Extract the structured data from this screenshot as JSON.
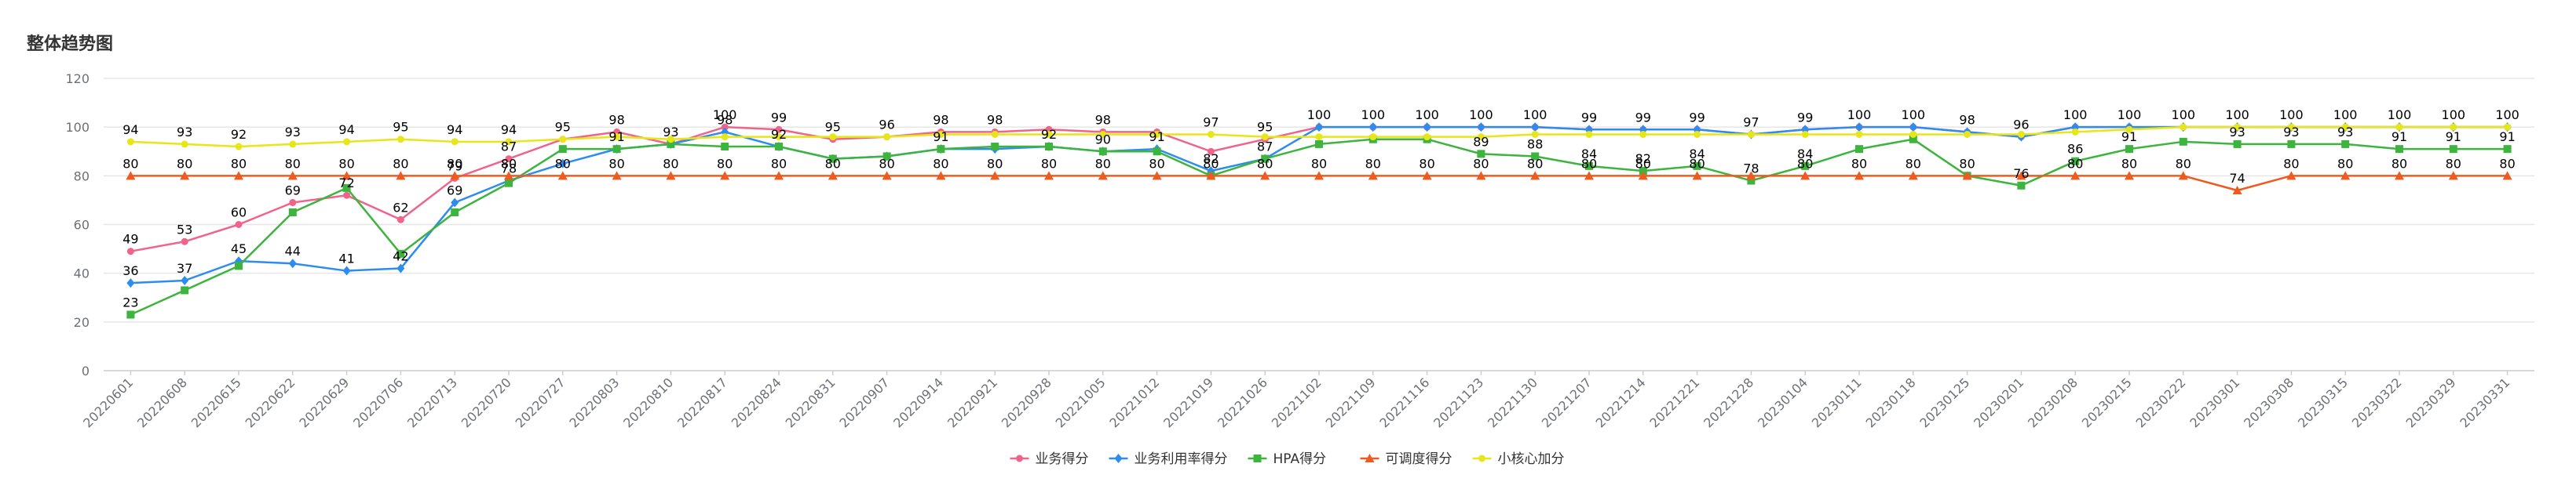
{
  "chart_data": {
    "type": "line",
    "title": "整体趋势图",
    "xlabel": "",
    "ylabel": "",
    "ylim": [
      0,
      120
    ],
    "yticks": [
      0,
      20,
      40,
      60,
      80,
      100,
      120
    ],
    "grid": true,
    "legend_position": "bottom",
    "categories": [
      "20220601",
      "20220608",
      "20220615",
      "20220622",
      "20220629",
      "20220706",
      "20220713",
      "20220720",
      "20220727",
      "20220803",
      "20220810",
      "20220817",
      "20220824",
      "20220831",
      "20220907",
      "20220914",
      "20220921",
      "20220928",
      "20221005",
      "20221012",
      "20221019",
      "20221026",
      "20221102",
      "20221109",
      "20221116",
      "20221123",
      "20221130",
      "20221207",
      "20221214",
      "20221221",
      "20221228",
      "20230104",
      "20230111",
      "20230118",
      "20230125",
      "20230201",
      "20230208",
      "20230215",
      "20230222",
      "20230301",
      "20230308",
      "20230315",
      "20230322",
      "20230329",
      "20230331"
    ],
    "series": [
      {
        "name": "业务得分",
        "color": "#f0648c",
        "marker": "circle",
        "values": [
          49,
          53,
          60,
          69,
          72,
          62,
          79,
          87,
          95,
          98,
          93,
          100,
          99,
          95,
          96,
          98,
          98,
          99,
          98,
          98,
          90,
          95,
          100,
          100,
          100,
          100,
          100,
          99,
          99,
          99,
          97,
          99,
          100,
          100,
          98,
          96,
          100,
          100,
          100,
          100,
          100,
          100,
          100,
          100,
          100
        ],
        "labels": [
          true,
          true,
          true,
          true,
          true,
          true,
          true,
          true,
          false,
          true,
          false,
          true,
          true,
          true,
          true,
          true,
          true,
          false,
          true,
          false,
          false,
          true,
          false,
          false,
          false,
          false,
          false,
          false,
          false,
          false,
          true,
          false,
          false,
          false,
          true,
          true,
          false,
          false,
          false,
          false,
          false,
          false,
          false,
          false,
          false
        ]
      },
      {
        "name": "业务利用率得分",
        "color": "#2d8cf0",
        "marker": "diamond",
        "values": [
          36,
          37,
          45,
          44,
          41,
          42,
          69,
          78,
          85,
          91,
          93,
          98,
          92,
          87,
          88,
          91,
          91,
          92,
          90,
          91,
          82,
          87,
          100,
          100,
          100,
          100,
          100,
          99,
          99,
          99,
          97,
          99,
          100,
          100,
          98,
          96,
          100,
          100,
          100,
          100,
          100,
          100,
          100,
          100,
          100
        ],
        "labels": [
          true,
          true,
          true,
          true,
          true,
          true,
          true,
          true,
          false,
          true,
          true,
          true,
          true,
          false,
          false,
          true,
          false,
          true,
          true,
          true,
          true,
          true,
          true,
          true,
          true,
          true,
          true,
          true,
          true,
          true,
          false,
          true,
          true,
          true,
          false,
          false,
          true,
          true,
          true,
          true,
          true,
          true,
          true,
          true,
          true
        ]
      },
      {
        "name": "HPA得分",
        "color": "#3db43d",
        "marker": "square",
        "values": [
          23,
          33,
          43,
          65,
          75,
          48,
          65,
          77,
          91,
          91,
          93,
          92,
          92,
          87,
          88,
          91,
          92,
          92,
          90,
          90,
          80,
          87,
          93,
          95,
          95,
          89,
          88,
          84,
          82,
          84,
          78,
          84,
          91,
          95,
          80,
          76,
          86,
          91,
          94,
          93,
          93,
          93,
          91,
          91,
          91
        ],
        "labels": [
          true,
          false,
          false,
          false,
          false,
          false,
          false,
          false,
          false,
          false,
          false,
          false,
          false,
          false,
          false,
          false,
          false,
          false,
          false,
          false,
          false,
          false,
          false,
          false,
          false,
          true,
          true,
          true,
          true,
          true,
          true,
          true,
          false,
          false,
          false,
          true,
          true,
          true,
          false,
          true,
          true,
          true,
          true,
          true,
          true
        ]
      },
      {
        "name": "可调度得分",
        "color": "#f05a1e",
        "marker": "triangle",
        "values": [
          80,
          80,
          80,
          80,
          80,
          80,
          80,
          80,
          80,
          80,
          80,
          80,
          80,
          80,
          80,
          80,
          80,
          80,
          80,
          80,
          80,
          80,
          80,
          80,
          80,
          80,
          80,
          80,
          80,
          80,
          80,
          80,
          80,
          80,
          80,
          80,
          80,
          80,
          80,
          74,
          80,
          80,
          80,
          80,
          80
        ],
        "labels": [
          true,
          true,
          true,
          true,
          true,
          true,
          true,
          true,
          true,
          true,
          true,
          true,
          true,
          true,
          true,
          true,
          true,
          true,
          true,
          true,
          true,
          true,
          true,
          true,
          true,
          true,
          true,
          true,
          true,
          true,
          false,
          true,
          true,
          true,
          true,
          false,
          true,
          true,
          true,
          true,
          true,
          true,
          true,
          true,
          true
        ]
      },
      {
        "name": "小核心加分",
        "color": "#e6e619",
        "marker": "circle",
        "values": [
          94,
          93,
          92,
          93,
          94,
          95,
          94,
          94,
          95,
          96,
          95,
          96,
          96,
          96,
          96,
          97,
          97,
          97,
          97,
          97,
          97,
          96,
          96,
          96,
          96,
          96,
          97,
          97,
          97,
          97,
          97,
          97,
          97,
          97,
          97,
          97,
          98,
          99,
          100,
          100,
          100,
          100,
          100,
          100,
          100
        ],
        "labels": [
          true,
          true,
          true,
          true,
          true,
          true,
          true,
          true,
          true,
          false,
          false,
          false,
          false,
          false,
          false,
          false,
          false,
          false,
          false,
          false,
          true,
          false,
          false,
          false,
          false,
          false,
          false,
          false,
          false,
          false,
          false,
          false,
          false,
          false,
          false,
          false,
          false,
          false,
          false,
          false,
          false,
          false,
          false,
          false,
          false
        ]
      }
    ]
  }
}
